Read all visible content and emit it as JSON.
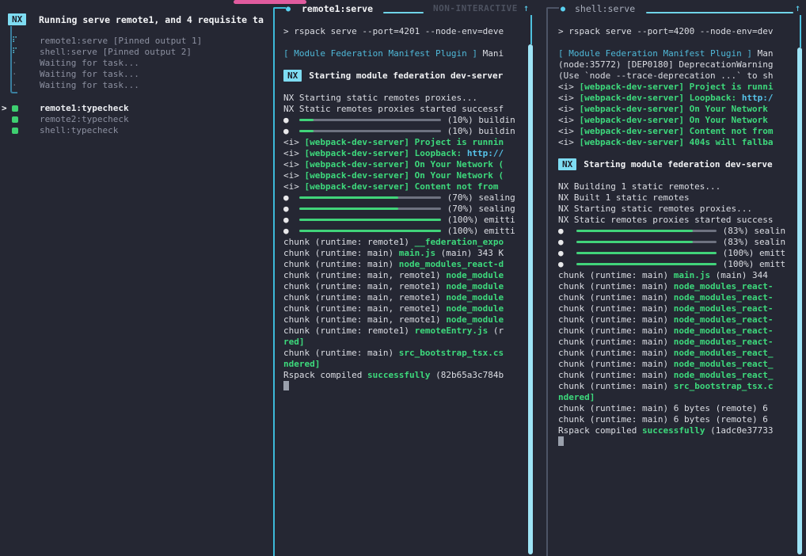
{
  "colors": {
    "background": "#252733",
    "accent_cyan": "#5ad1f0",
    "badge_cyan": "#7edcf2",
    "green": "#3dd97c",
    "progress_green": "#41d47a",
    "pink": "#e05b9e",
    "gray_text": "#8c90a0",
    "dim_text": "#4d5260",
    "white_text": "#f4f5f7",
    "focused_border": "#3cb9d8",
    "unfocused_border": "#4d5466"
  },
  "tasks_pane": {
    "badge": "NX",
    "title": "Running serve remote1, and 4 requisite ta",
    "selected_marker": ">",
    "running": [
      {
        "icon": "spinner",
        "label": "remote1:serve [Pinned output 1]"
      },
      {
        "icon": "spinner",
        "label": "shell:serve [Pinned output 2]"
      },
      {
        "icon": "dot",
        "label": "Waiting for task..."
      },
      {
        "icon": "dot",
        "label": "Waiting for task..."
      },
      {
        "icon": "dot",
        "label": "Waiting for task..."
      }
    ],
    "typecheck": [
      {
        "icon": "square",
        "label": "remote1:typecheck",
        "selected": true
      },
      {
        "icon": "square",
        "label": "remote2:typecheck"
      },
      {
        "icon": "square",
        "label": "shell:typecheck"
      }
    ]
  },
  "center_pane": {
    "bullet": "●",
    "title": "remote1:serve",
    "mode_label": "NON-INTERACTIVE",
    "scroll_up_arrow": "↑",
    "lines": [
      {
        "s": [
          [
            "w",
            "> rspack serve --port=4201 --node-env=deve"
          ]
        ]
      },
      {},
      {
        "s": [
          [
            "t",
            "[ Module Federation Manifest Plugin ]"
          ],
          [
            "w",
            " Mani"
          ]
        ]
      },
      {},
      {
        "nx": "Starting module federation dev-server"
      },
      {},
      {
        "s": [
          [
            "w",
            "NX Starting static remotes proxies..."
          ]
        ]
      },
      {
        "s": [
          [
            "w",
            "NX Static remotes proxies started successf"
          ]
        ]
      },
      {
        "p": 10,
        "x": "(10%) buildin"
      },
      {
        "p": 10,
        "x": "(10%) buildin"
      },
      {
        "s": [
          [
            "w",
            "<i> "
          ],
          [
            "g",
            "[webpack-dev-server] Project is runnin"
          ]
        ]
      },
      {
        "s": [
          [
            "w",
            "<i> "
          ],
          [
            "g",
            "[webpack-dev-server] Loopback: "
          ],
          [
            "c",
            "http://"
          ]
        ]
      },
      {
        "s": [
          [
            "w",
            "<i> "
          ],
          [
            "g",
            "[webpack-dev-server] On Your Network ("
          ]
        ]
      },
      {
        "s": [
          [
            "w",
            "<i> "
          ],
          [
            "g",
            "[webpack-dev-server] On Your Network ("
          ]
        ]
      },
      {
        "s": [
          [
            "w",
            "<i> "
          ],
          [
            "g",
            "[webpack-dev-server] Content not from"
          ]
        ]
      },
      {
        "p": 70,
        "x": "(70%) sealing"
      },
      {
        "p": 70,
        "x": "(70%) sealing"
      },
      {
        "p": 100,
        "x": "(100%) emitti"
      },
      {
        "p": 100,
        "x": "(100%) emitti"
      },
      {
        "s": [
          [
            "w",
            "chunk (runtime: remote1) "
          ],
          [
            "g",
            "__federation_expo"
          ]
        ]
      },
      {
        "s": [
          [
            "w",
            "chunk (runtime: main) "
          ],
          [
            "g",
            "main.js"
          ],
          [
            "w",
            " (main) 343 K"
          ]
        ]
      },
      {
        "s": [
          [
            "w",
            "chunk (runtime: main) "
          ],
          [
            "g",
            "node_modules_react-d"
          ]
        ]
      },
      {
        "s": [
          [
            "w",
            "chunk (runtime: main, remote1) "
          ],
          [
            "g",
            "node_module"
          ]
        ]
      },
      {
        "s": [
          [
            "w",
            "chunk (runtime: main, remote1) "
          ],
          [
            "g",
            "node_module"
          ]
        ]
      },
      {
        "s": [
          [
            "w",
            "chunk (runtime: main, remote1) "
          ],
          [
            "g",
            "node_module"
          ]
        ]
      },
      {
        "s": [
          [
            "w",
            "chunk (runtime: main, remote1) "
          ],
          [
            "g",
            "node_module"
          ]
        ]
      },
      {
        "s": [
          [
            "w",
            "chunk (runtime: main, remote1) "
          ],
          [
            "g",
            "node_module"
          ]
        ]
      },
      {
        "s": [
          [
            "w",
            "chunk (runtime: remote1) "
          ],
          [
            "g",
            "remoteEntry.js"
          ],
          [
            "w",
            " (r"
          ]
        ]
      },
      {
        "s": [
          [
            "g",
            "red]"
          ]
        ]
      },
      {
        "s": [
          [
            "w",
            "chunk (runtime: main) "
          ],
          [
            "g",
            "src_bootstrap_tsx.cs"
          ]
        ]
      },
      {
        "s": [
          [
            "g",
            "ndered]"
          ]
        ]
      },
      {
        "s": [
          [
            "w",
            "Rspack compiled "
          ],
          [
            "g",
            "successfully"
          ],
          [
            "w",
            " (82b65a3c784b"
          ]
        ]
      },
      {
        "cur": true
      }
    ]
  },
  "right_pane": {
    "bullet": "●",
    "title": "shell:serve",
    "scroll_up_arrow": "↑",
    "lines": [
      {
        "s": [
          [
            "w",
            "> rspack serve --port=4200 --node-env=dev"
          ]
        ]
      },
      {},
      {
        "s": [
          [
            "t",
            "[ Module Federation Manifest Plugin ]"
          ],
          [
            "w",
            " Man"
          ]
        ]
      },
      {
        "s": [
          [
            "w",
            "(node:35772) [DEP0180] DeprecationWarning"
          ]
        ]
      },
      {
        "s": [
          [
            "w",
            "(Use `node --trace-deprecation ...` to sh"
          ]
        ]
      },
      {
        "s": [
          [
            "w",
            "<i> "
          ],
          [
            "g",
            "[webpack-dev-server] Project is runni"
          ]
        ]
      },
      {
        "s": [
          [
            "w",
            "<i> "
          ],
          [
            "g",
            "[webpack-dev-server] Loopback: "
          ],
          [
            "c",
            "http:/"
          ]
        ]
      },
      {
        "s": [
          [
            "w",
            "<i> "
          ],
          [
            "g",
            "[webpack-dev-server] On Your Network"
          ]
        ]
      },
      {
        "s": [
          [
            "w",
            "<i> "
          ],
          [
            "g",
            "[webpack-dev-server] On Your Network"
          ]
        ]
      },
      {
        "s": [
          [
            "w",
            "<i> "
          ],
          [
            "g",
            "[webpack-dev-server] Content not from"
          ]
        ]
      },
      {
        "s": [
          [
            "w",
            "<i> "
          ],
          [
            "g",
            "[webpack-dev-server] 404s will fallba"
          ]
        ]
      },
      {},
      {
        "nx": "Starting module federation dev-serve"
      },
      {},
      {
        "s": [
          [
            "w",
            "NX Building 1 static remotes..."
          ]
        ]
      },
      {
        "s": [
          [
            "w",
            "NX Built 1 static remotes"
          ]
        ]
      },
      {
        "s": [
          [
            "w",
            "NX Starting static remotes proxies..."
          ]
        ]
      },
      {
        "s": [
          [
            "w",
            "NX Static remotes proxies started success"
          ]
        ]
      },
      {
        "p": 83,
        "x": "(83%) sealin"
      },
      {
        "p": 83,
        "x": "(83%) sealin"
      },
      {
        "p": 100,
        "x": "(100%) emitt"
      },
      {
        "p": 100,
        "x": "(100%) emitt"
      },
      {
        "s": [
          [
            "w",
            "chunk (runtime: main) "
          ],
          [
            "g",
            "main.js"
          ],
          [
            "w",
            " (main) 344"
          ]
        ]
      },
      {
        "s": [
          [
            "w",
            "chunk (runtime: main) "
          ],
          [
            "g",
            "node_modules_react-"
          ]
        ]
      },
      {
        "s": [
          [
            "w",
            "chunk (runtime: main) "
          ],
          [
            "g",
            "node_modules_react-"
          ]
        ]
      },
      {
        "s": [
          [
            "w",
            "chunk (runtime: main) "
          ],
          [
            "g",
            "node_modules_react-"
          ]
        ]
      },
      {
        "s": [
          [
            "w",
            "chunk (runtime: main) "
          ],
          [
            "g",
            "node_modules_react-"
          ]
        ]
      },
      {
        "s": [
          [
            "w",
            "chunk (runtime: main) "
          ],
          [
            "g",
            "node_modules_react-"
          ]
        ]
      },
      {
        "s": [
          [
            "w",
            "chunk (runtime: main) "
          ],
          [
            "g",
            "node_modules_react-"
          ]
        ]
      },
      {
        "s": [
          [
            "w",
            "chunk (runtime: main) "
          ],
          [
            "g",
            "node_modules_react_"
          ]
        ]
      },
      {
        "s": [
          [
            "w",
            "chunk (runtime: main) "
          ],
          [
            "g",
            "node_modules_react_"
          ]
        ]
      },
      {
        "s": [
          [
            "w",
            "chunk (runtime: main) "
          ],
          [
            "g",
            "node_modules_react_"
          ]
        ]
      },
      {
        "s": [
          [
            "w",
            "chunk (runtime: main) "
          ],
          [
            "g",
            "src_bootstrap_tsx.c"
          ]
        ]
      },
      {
        "s": [
          [
            "g",
            "ndered]"
          ]
        ]
      },
      {
        "s": [
          [
            "w",
            "chunk (runtime: main) 6 bytes (remote) 6"
          ]
        ]
      },
      {
        "s": [
          [
            "w",
            "chunk (runtime: main) 6 bytes (remote) 6"
          ]
        ]
      },
      {
        "s": [
          [
            "w",
            "Rspack compiled "
          ],
          [
            "g",
            "successfully"
          ],
          [
            "w",
            " (1adc0e37733"
          ]
        ]
      },
      {
        "cur": true
      }
    ]
  }
}
